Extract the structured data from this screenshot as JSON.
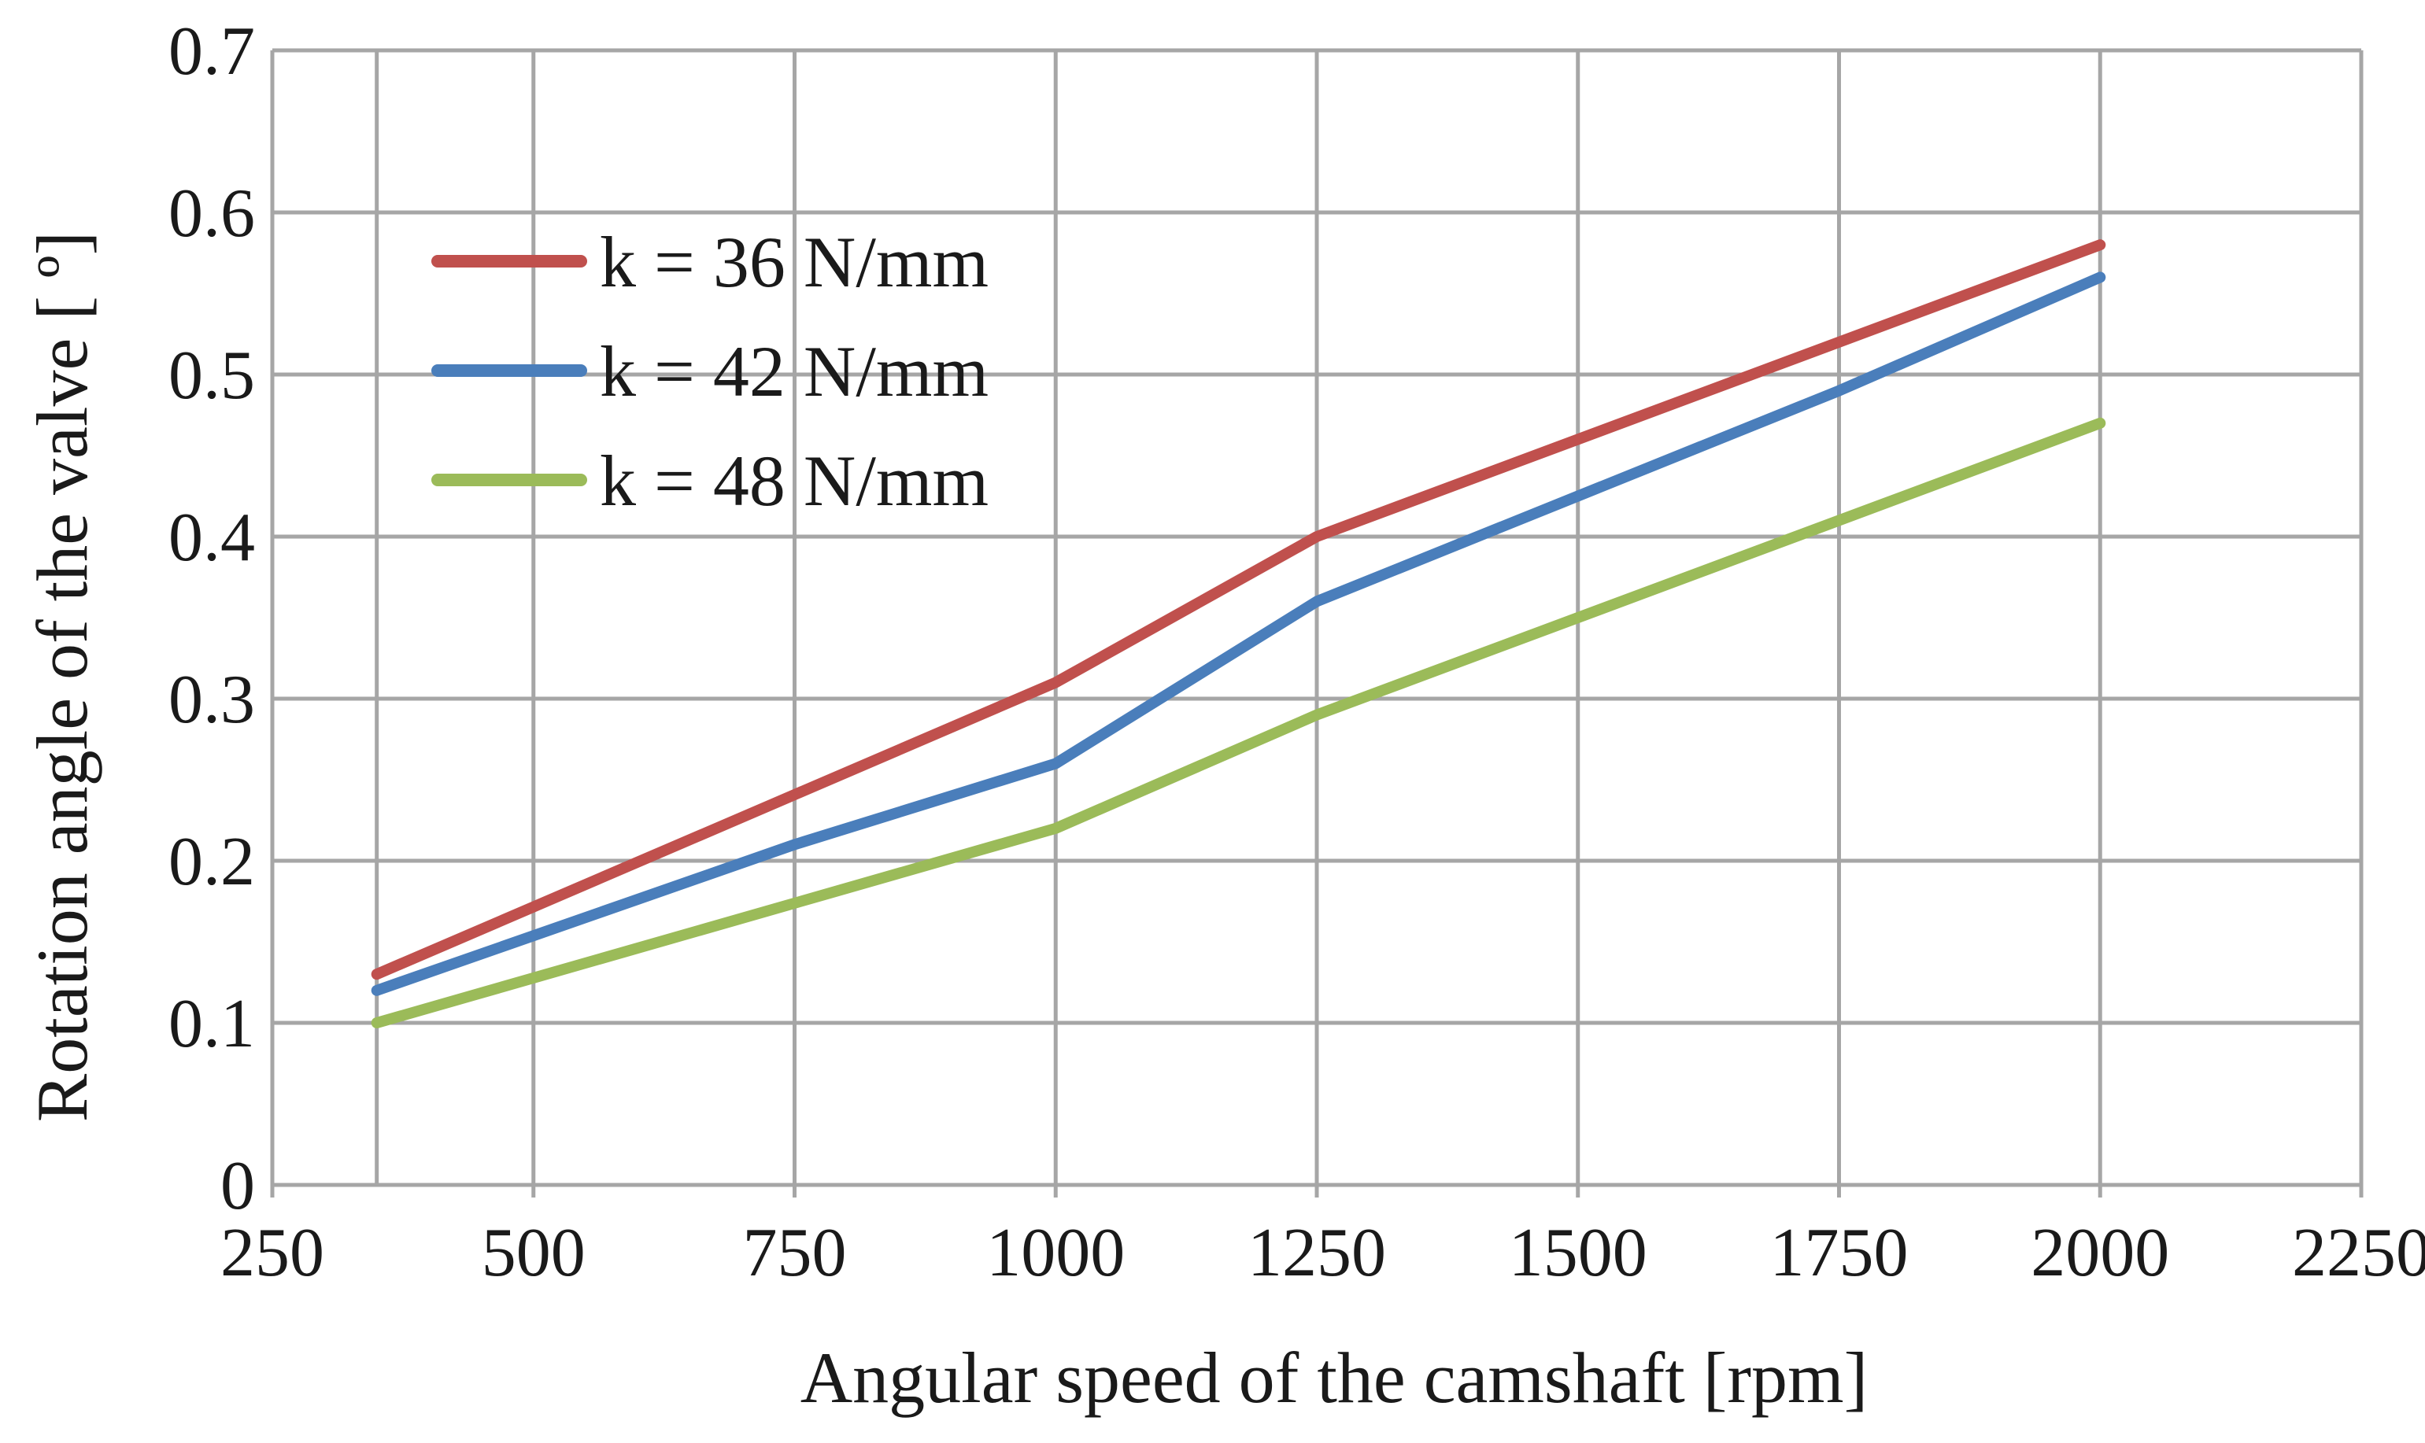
{
  "chart_data": {
    "type": "line",
    "title": "",
    "xlabel": "Angular speed of the camshaft [rpm]",
    "ylabel": "Rotation angle of the valve [ º]",
    "xlim": [
      250,
      2250
    ],
    "ylim": [
      0,
      0.7
    ],
    "x_ticks": [
      250,
      500,
      750,
      1000,
      1250,
      1500,
      1750,
      2000,
      2250
    ],
    "x_tick_labels": [
      "250",
      "500",
      "750",
      "1000",
      "1250",
      "1500",
      "1750",
      "2000",
      "2250"
    ],
    "y_ticks": [
      0,
      0.1,
      0.2,
      0.3,
      0.4,
      0.5,
      0.6,
      0.7
    ],
    "y_tick_labels": [
      "0",
      "0.1",
      "0.2",
      "0.3",
      "0.4",
      "0.5",
      "0.6",
      "0.7"
    ],
    "x_minor_gridlines": [
      350
    ],
    "grid": true,
    "legend_position": "top-left",
    "series": [
      {
        "name": "k = 36 N/mm",
        "color": "#c0504d",
        "x": [
          350,
          1000,
          1250,
          2000
        ],
        "y": [
          0.13,
          0.31,
          0.4,
          0.58
        ]
      },
      {
        "name": "k = 42 N/mm",
        "color": "#4a7ebb",
        "x": [
          350,
          750,
          1000,
          1250,
          1750,
          2000
        ],
        "y": [
          0.12,
          0.21,
          0.26,
          0.36,
          0.49,
          0.56
        ]
      },
      {
        "name": "k = 48 N/mm",
        "color": "#9bbb59",
        "x": [
          350,
          1000,
          1250,
          2000
        ],
        "y": [
          0.1,
          0.22,
          0.29,
          0.47
        ]
      }
    ]
  }
}
